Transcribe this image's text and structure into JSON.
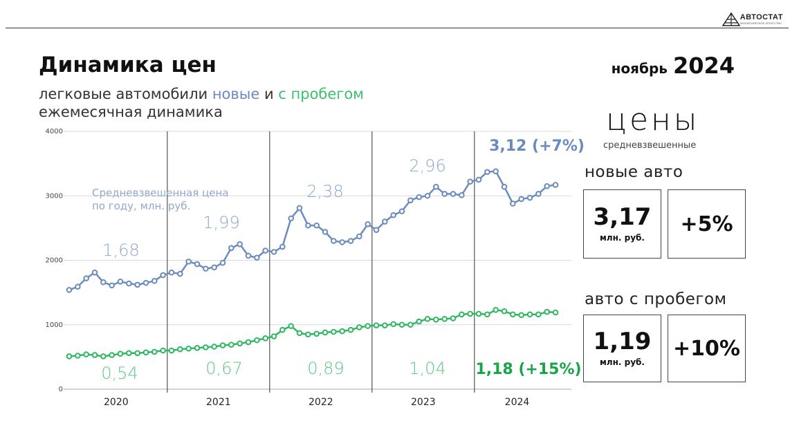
{
  "header": {
    "title": "Динамика цен",
    "subtitle_prefix": "легковые автомобили ",
    "subtitle_new": "новые",
    "subtitle_mid": " и ",
    "subtitle_used": "с пробегом",
    "subtitle_line2": "ежемесячная динамика",
    "period_month": "ноябрь",
    "period_year": "2024",
    "logo_name": "АВТОСТАТ",
    "logo_sub": "АНАЛИТИЧЕСКОЕ АГЕНТСТВО"
  },
  "panel": {
    "title": "цены",
    "subtitle": "средневзвешенные",
    "new_label": "новые авто",
    "new_value": "3,17",
    "new_unit": "млн. руб.",
    "new_change": "+5%",
    "used_label": "авто с пробегом",
    "used_value": "1,19",
    "used_unit": "млн. руб.",
    "used_change": "+10%"
  },
  "colors": {
    "new": "#6a8bbd",
    "used": "#2fb760",
    "annual_used": "#5cc985"
  },
  "chart_data": {
    "type": "line",
    "ylim": [
      0,
      4000
    ],
    "yticks": [
      "0",
      "1000",
      "2000",
      "3000",
      "4000"
    ],
    "years": [
      "2020",
      "2021",
      "2022",
      "2023",
      "2024"
    ],
    "annotation": "Средневзвешенная цена по году, млн. руб.",
    "annual_new": [
      "1,68",
      "1,99",
      "2,38",
      "2,96",
      "3,12 (+7%)"
    ],
    "annual_used": [
      "0,54",
      "0,67",
      "0,89",
      "1,04",
      "1,18 (+15%)"
    ],
    "series": [
      {
        "values": [
          1540,
          1590,
          1720,
          1810,
          1660,
          1610,
          1670,
          1640,
          1620,
          1650,
          1680,
          1770,
          1810,
          1790,
          1980,
          1940,
          1870,
          1890,
          1960,
          2190,
          2250,
          2070,
          2040,
          2150,
          2130,
          2210,
          2650,
          2810,
          2540,
          2540,
          2440,
          2300,
          2280,
          2300,
          2370,
          2560,
          2470,
          2600,
          2700,
          2760,
          2930,
          2980,
          3000,
          3140,
          3030,
          3030,
          3010,
          3220,
          3250,
          3370,
          3380,
          3140,
          2880,
          2950,
          2970,
          3030,
          3150,
          3170
        ]
      },
      {
        "values": [
          510,
          520,
          540,
          530,
          510,
          530,
          550,
          560,
          560,
          570,
          580,
          600,
          600,
          620,
          630,
          640,
          650,
          660,
          680,
          690,
          710,
          730,
          760,
          790,
          820,
          920,
          980,
          870,
          850,
          860,
          880,
          890,
          900,
          920,
          960,
          980,
          990,
          990,
          1010,
          1000,
          1000,
          1050,
          1090,
          1080,
          1090,
          1100,
          1160,
          1170,
          1170,
          1160,
          1230,
          1210,
          1160,
          1150,
          1160,
          1160,
          1200,
          1190
        ]
      }
    ]
  }
}
